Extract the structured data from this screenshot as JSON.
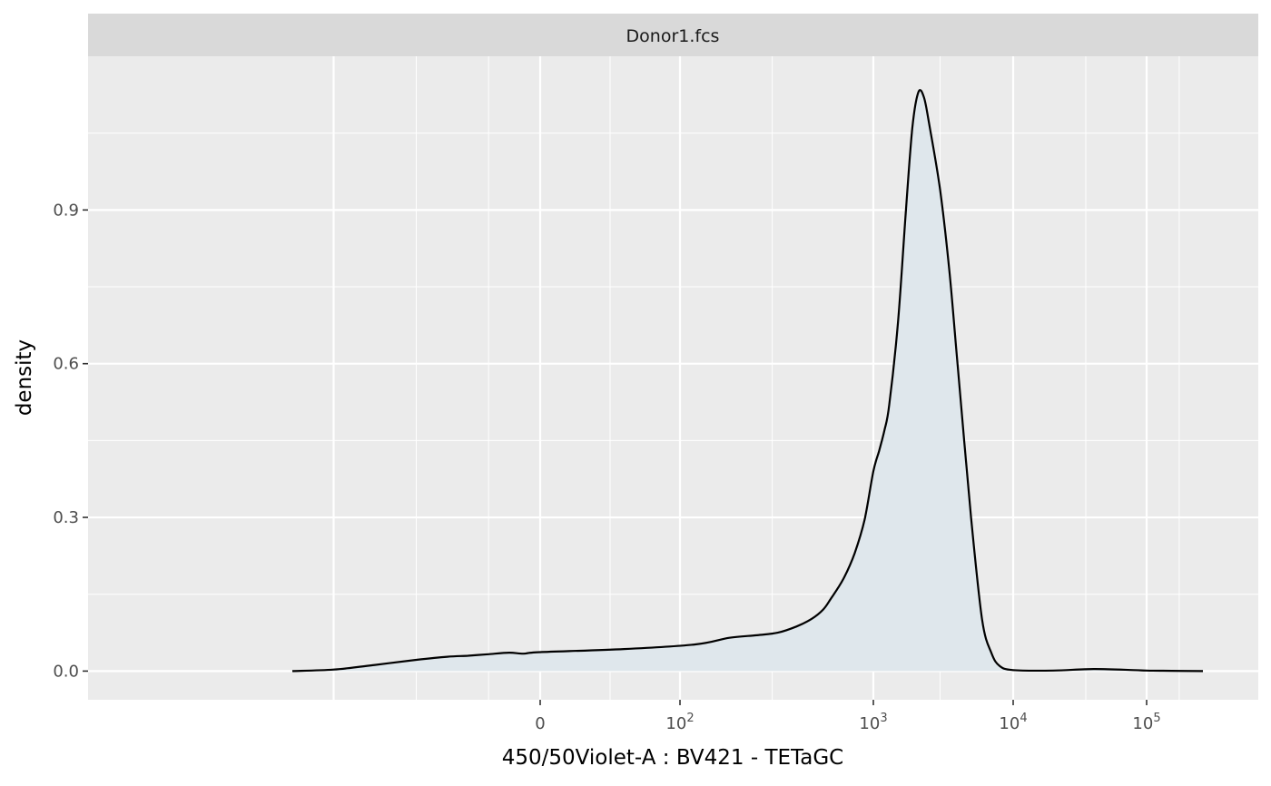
{
  "chart_data": {
    "type": "area",
    "facet_title": "Donor1.fcs",
    "xlabel": "450/50Violet-A : BV421 - TETaGC",
    "ylabel": "density",
    "x_scale": "biexponential",
    "x_ticks": [
      {
        "value": 0,
        "base": "0",
        "exp": ""
      },
      {
        "value": 100,
        "base": "10",
        "exp": "2"
      },
      {
        "value": 1000,
        "base": "10",
        "exp": "3"
      },
      {
        "value": 10000,
        "base": "10",
        "exp": "4"
      },
      {
        "value": 100000,
        "base": "10",
        "exp": "5"
      }
    ],
    "y_ticks": [
      "0.0",
      "0.3",
      "0.6",
      "0.9"
    ],
    "y_tick_values": [
      0.0,
      0.3,
      0.6,
      0.9
    ],
    "ylim": [
      -0.056,
      1.2
    ],
    "grid": true,
    "colors": {
      "fill": "#dfe7ec",
      "line": "#000000",
      "panel": "#ebebeb",
      "strip": "#d9d9d9",
      "gridline": "#ffffff"
    },
    "series": [
      {
        "x": [
          -1200,
          -1000,
          -800,
          -600,
          -450,
          -350,
          -250,
          -150,
          -80,
          0,
          60,
          120,
          180,
          250,
          320,
          400,
          480,
          550,
          600,
          700,
          800,
          900,
          1000,
          1100,
          1200,
          1300,
          1500,
          1700,
          1900,
          2100,
          2300,
          2500,
          3000,
          3500,
          4000,
          5000,
          6000,
          7000,
          8000,
          10000,
          20000,
          40000,
          80000,
          100000,
          150000,
          250000
        ],
        "y": [
          0.0,
          0.003,
          0.012,
          0.022,
          0.028,
          0.03,
          0.033,
          0.036,
          0.034,
          0.037,
          0.043,
          0.052,
          0.065,
          0.07,
          0.075,
          0.087,
          0.102,
          0.12,
          0.14,
          0.18,
          0.23,
          0.295,
          0.39,
          0.43,
          0.47,
          0.52,
          0.68,
          0.89,
          1.06,
          1.13,
          1.12,
          1.07,
          0.94,
          0.78,
          0.6,
          0.3,
          0.1,
          0.035,
          0.01,
          0.002,
          0.001,
          0.004,
          0.002,
          0.001,
          0.0005,
          0.0
        ]
      }
    ]
  }
}
